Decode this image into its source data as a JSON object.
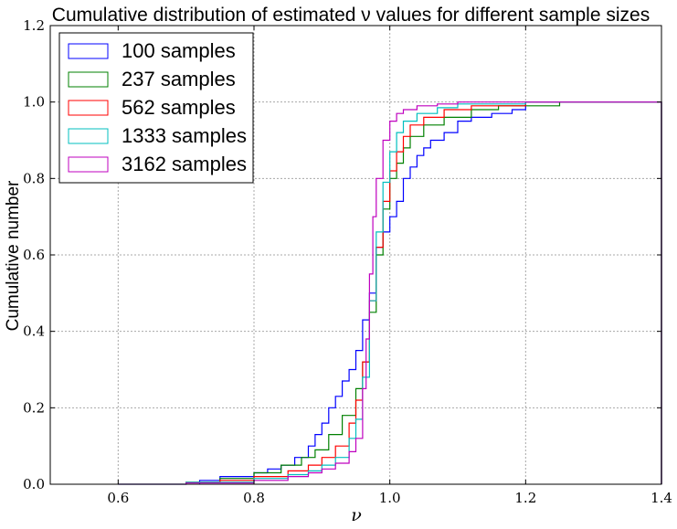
{
  "chart_data": {
    "type": "line",
    "title": "Cumulative distribution of estimated ν values for different sample sizes",
    "xlabel": "ν",
    "ylabel": "Cumulative number",
    "xlim": [
      0.5,
      1.4
    ],
    "ylim": [
      0.0,
      1.2
    ],
    "x_ticks": [
      0.6,
      0.8,
      1.0,
      1.2,
      1.4
    ],
    "y_ticks": [
      0.0,
      0.2,
      0.4,
      0.6,
      0.8,
      1.0,
      1.2
    ],
    "x_tick_labels": [
      "0.6",
      "0.8",
      "1.0",
      "1.2",
      "1.4"
    ],
    "y_tick_labels": [
      "0.0",
      "0.2",
      "0.4",
      "0.6",
      "0.8",
      "1.0",
      "1.2"
    ],
    "grid": true,
    "legend_position": "top-left",
    "step": true,
    "series": [
      {
        "name": "100 samples",
        "color": "#0000ff",
        "x": [
          0.72,
          0.75,
          0.78,
          0.8,
          0.82,
          0.84,
          0.86,
          0.88,
          0.89,
          0.9,
          0.91,
          0.92,
          0.93,
          0.94,
          0.95,
          0.96,
          0.97,
          0.98,
          0.99,
          1.0,
          1.01,
          1.02,
          1.03,
          1.04,
          1.05,
          1.06,
          1.08,
          1.1,
          1.12,
          1.15,
          1.18,
          1.2,
          1.4
        ],
        "y": [
          0.01,
          0.02,
          0.02,
          0.03,
          0.04,
          0.05,
          0.07,
          0.1,
          0.13,
          0.16,
          0.2,
          0.23,
          0.27,
          0.3,
          0.35,
          0.43,
          0.5,
          0.62,
          0.66,
          0.7,
          0.74,
          0.8,
          0.83,
          0.86,
          0.88,
          0.9,
          0.92,
          0.95,
          0.96,
          0.97,
          0.98,
          1.0,
          1.0
        ]
      },
      {
        "name": "237 samples",
        "color": "#008000",
        "x": [
          0.7,
          0.75,
          0.8,
          0.84,
          0.87,
          0.89,
          0.91,
          0.93,
          0.95,
          0.96,
          0.97,
          0.98,
          0.99,
          1.0,
          1.01,
          1.02,
          1.03,
          1.05,
          1.08,
          1.12,
          1.16,
          1.25,
          1.4
        ],
        "y": [
          0.005,
          0.015,
          0.03,
          0.05,
          0.07,
          0.09,
          0.13,
          0.18,
          0.25,
          0.32,
          0.45,
          0.6,
          0.72,
          0.8,
          0.84,
          0.88,
          0.91,
          0.94,
          0.96,
          0.98,
          0.99,
          1.0,
          1.0
        ]
      },
      {
        "name": "562 samples",
        "color": "#ff0000",
        "x": [
          0.7,
          0.75,
          0.8,
          0.85,
          0.88,
          0.9,
          0.92,
          0.94,
          0.95,
          0.96,
          0.97,
          0.98,
          0.99,
          1.0,
          1.01,
          1.02,
          1.03,
          1.05,
          1.08,
          1.12,
          1.2,
          1.4
        ],
        "y": [
          0.005,
          0.01,
          0.02,
          0.035,
          0.05,
          0.07,
          0.1,
          0.16,
          0.22,
          0.32,
          0.48,
          0.62,
          0.74,
          0.82,
          0.87,
          0.91,
          0.94,
          0.96,
          0.98,
          0.99,
          1.0,
          1.0
        ]
      },
      {
        "name": "1333 samples",
        "color": "#00bfbf",
        "x": [
          0.6,
          0.7,
          0.8,
          0.85,
          0.88,
          0.9,
          0.92,
          0.94,
          0.95,
          0.96,
          0.97,
          0.98,
          0.99,
          1.0,
          1.01,
          1.02,
          1.04,
          1.07,
          1.1,
          1.2,
          1.4
        ],
        "y": [
          0.0,
          0.005,
          0.015,
          0.025,
          0.035,
          0.05,
          0.07,
          0.12,
          0.17,
          0.28,
          0.48,
          0.66,
          0.79,
          0.87,
          0.92,
          0.95,
          0.97,
          0.985,
          0.995,
          1.0,
          1.0
        ]
      },
      {
        "name": "3162 samples",
        "color": "#bf00bf",
        "x": [
          0.6,
          0.7,
          0.8,
          0.85,
          0.88,
          0.9,
          0.92,
          0.94,
          0.95,
          0.96,
          0.965,
          0.97,
          0.975,
          0.98,
          0.99,
          1.0,
          1.01,
          1.02,
          1.04,
          1.07,
          1.1,
          1.2,
          1.4
        ],
        "y": [
          0.0,
          0.003,
          0.01,
          0.02,
          0.03,
          0.04,
          0.055,
          0.085,
          0.12,
          0.25,
          0.38,
          0.55,
          0.7,
          0.8,
          0.9,
          0.95,
          0.97,
          0.98,
          0.99,
          0.995,
          1.0,
          1.0,
          1.0
        ]
      }
    ]
  }
}
